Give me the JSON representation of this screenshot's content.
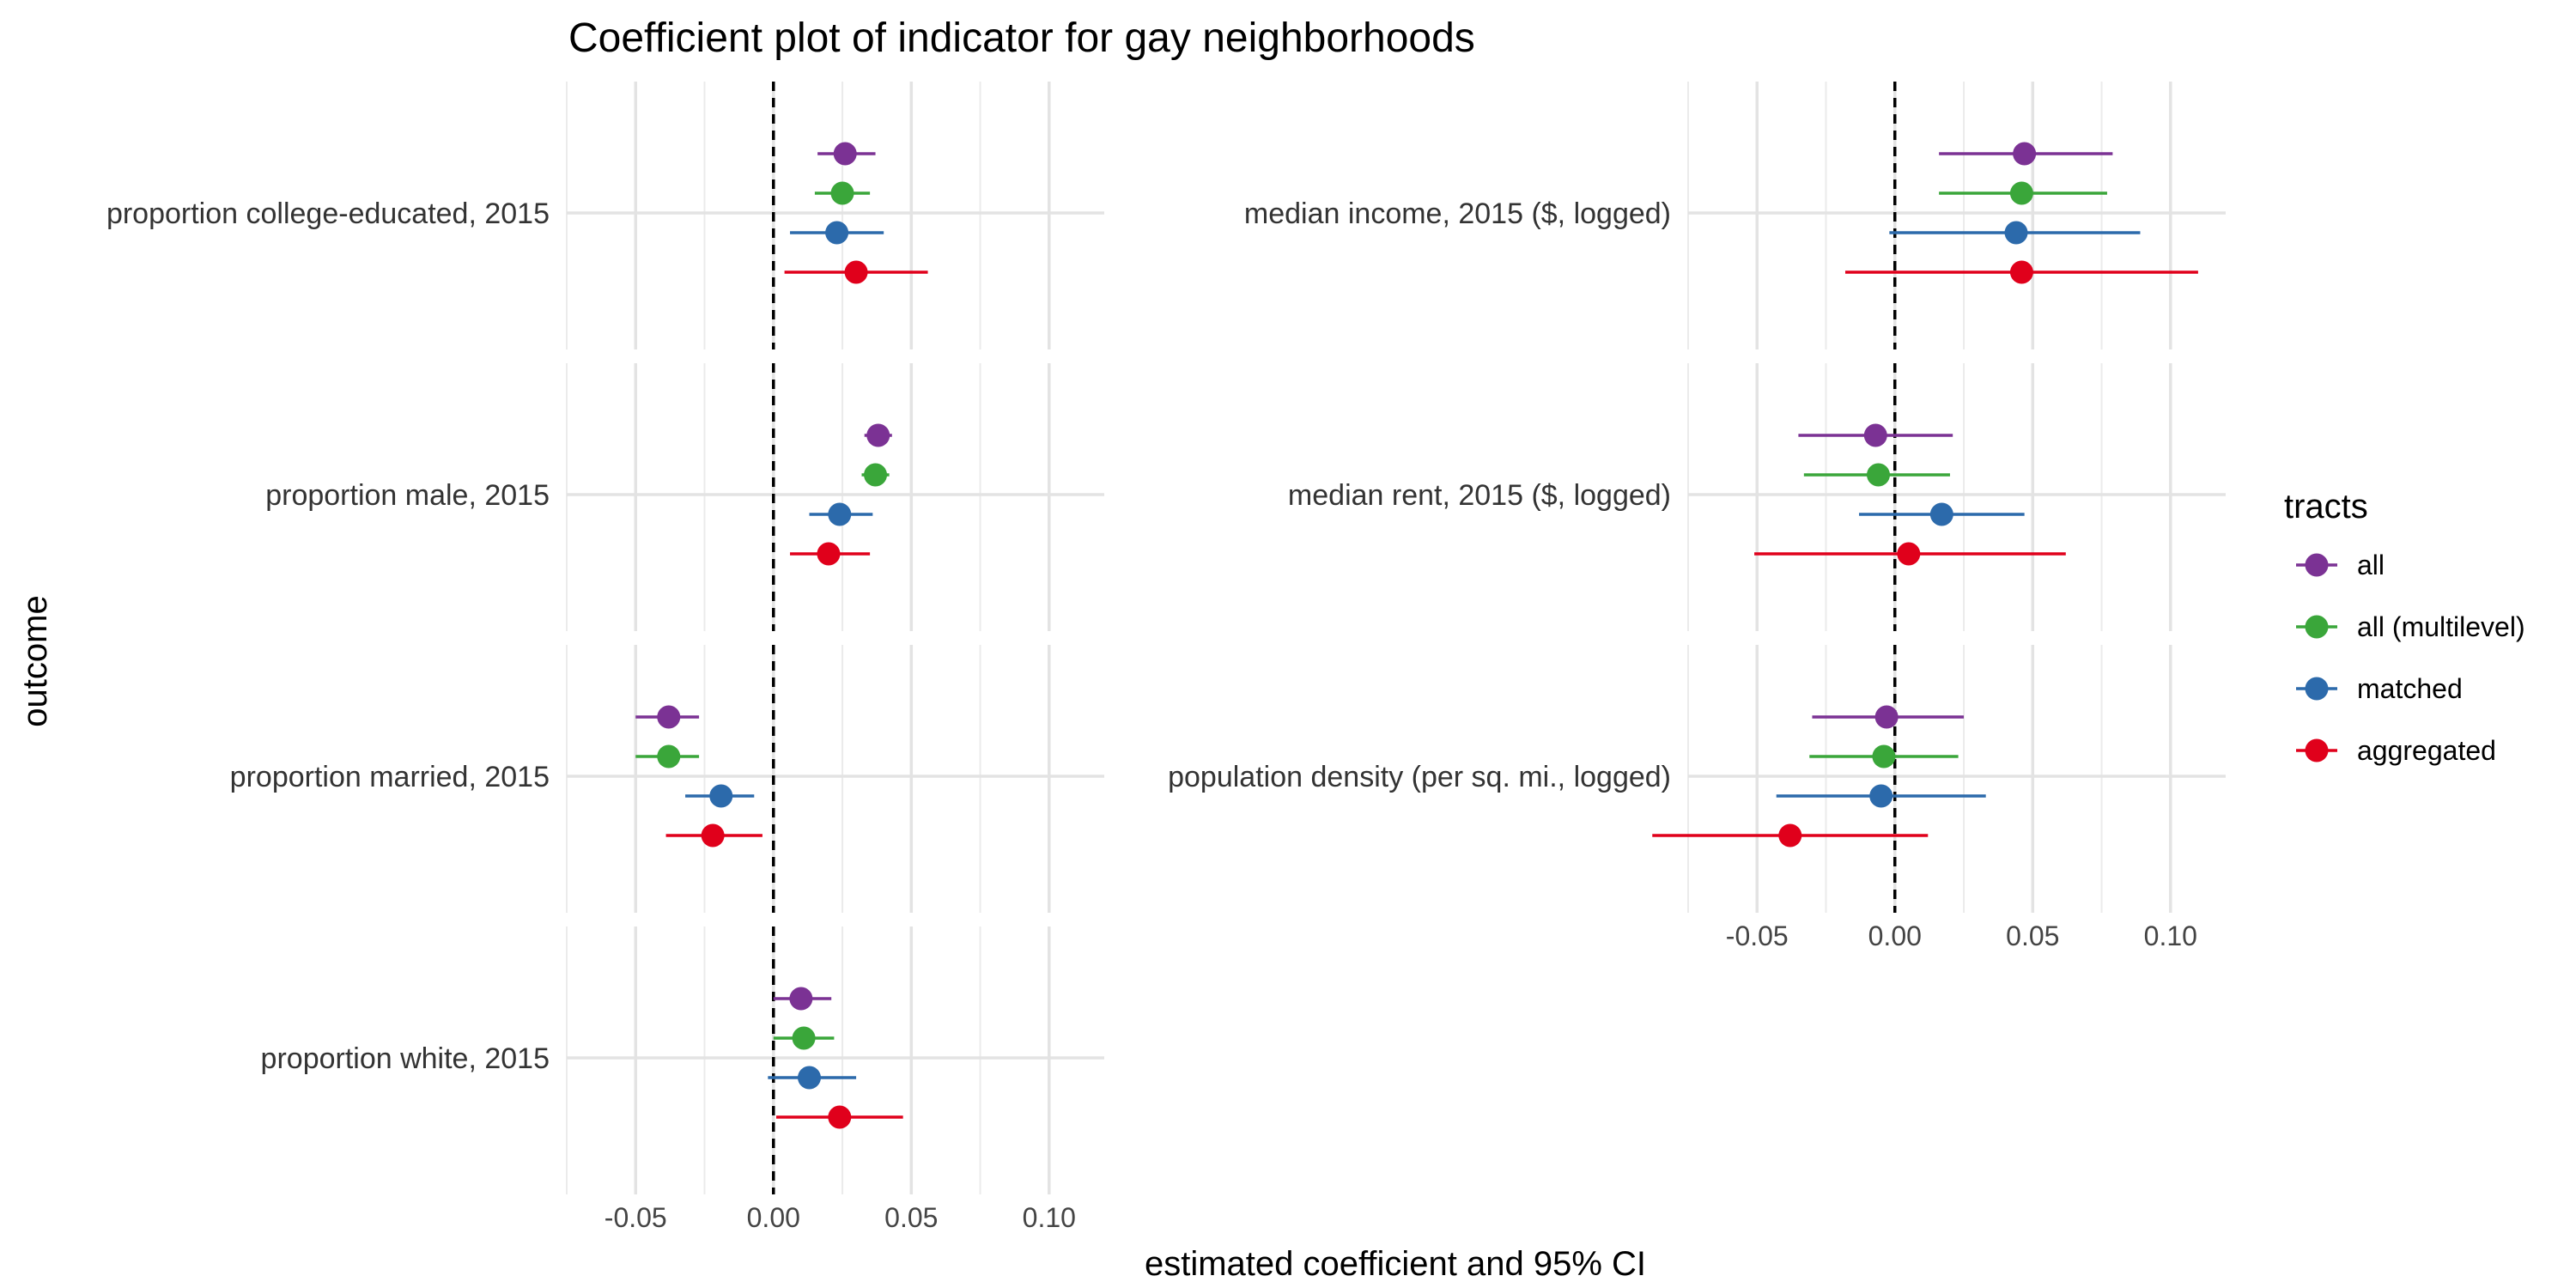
{
  "chart_data": {
    "type": "scatter",
    "title": "Coefficient plot of indicator for gay neighborhoods",
    "xlabel": "estimated coefficient and 95% CI",
    "ylabel": "outcome",
    "xlim": [
      -0.075,
      0.12
    ],
    "x_ticks": [
      -0.05,
      0.0,
      0.05,
      0.1
    ],
    "x_tick_labels": [
      "-0.05",
      "0.00",
      "0.05",
      "0.10"
    ],
    "reference_line": 0,
    "grid": true,
    "legend": {
      "title": "tracts",
      "placement": "right",
      "entries": [
        {
          "label": "all",
          "color": "#7b3294"
        },
        {
          "label": "all (multilevel)",
          "color": "#3aa63a"
        },
        {
          "label": "matched",
          "color": "#2c6aab"
        },
        {
          "label": "aggregated",
          "color": "#e0001b"
        }
      ]
    },
    "facets": [
      {
        "label": "proportion college-educated, 2015",
        "estimates": [
          {
            "series": "all",
            "estimate": 0.026,
            "low": 0.016,
            "high": 0.037
          },
          {
            "series": "all (multilevel)",
            "estimate": 0.025,
            "low": 0.015,
            "high": 0.035
          },
          {
            "series": "matched",
            "estimate": 0.023,
            "low": 0.006,
            "high": 0.04
          },
          {
            "series": "aggregated",
            "estimate": 0.03,
            "low": 0.004,
            "high": 0.056
          }
        ]
      },
      {
        "label": "proportion male, 2015",
        "estimates": [
          {
            "series": "all",
            "estimate": 0.038,
            "low": 0.033,
            "high": 0.043
          },
          {
            "series": "all (multilevel)",
            "estimate": 0.037,
            "low": 0.032,
            "high": 0.042
          },
          {
            "series": "matched",
            "estimate": 0.024,
            "low": 0.013,
            "high": 0.036
          },
          {
            "series": "aggregated",
            "estimate": 0.02,
            "low": 0.006,
            "high": 0.035
          }
        ]
      },
      {
        "label": "proportion married, 2015",
        "estimates": [
          {
            "series": "all",
            "estimate": -0.038,
            "low": -0.05,
            "high": -0.027
          },
          {
            "series": "all (multilevel)",
            "estimate": -0.038,
            "low": -0.05,
            "high": -0.027
          },
          {
            "series": "matched",
            "estimate": -0.019,
            "low": -0.032,
            "high": -0.007
          },
          {
            "series": "aggregated",
            "estimate": -0.022,
            "low": -0.039,
            "high": -0.004
          }
        ]
      },
      {
        "label": "proportion white, 2015",
        "estimates": [
          {
            "series": "all",
            "estimate": 0.01,
            "low": 0.0,
            "high": 0.021
          },
          {
            "series": "all (multilevel)",
            "estimate": 0.011,
            "low": 0.0,
            "high": 0.022
          },
          {
            "series": "matched",
            "estimate": 0.013,
            "low": -0.002,
            "high": 0.03
          },
          {
            "series": "aggregated",
            "estimate": 0.024,
            "low": 0.001,
            "high": 0.047
          }
        ]
      },
      {
        "label": "median income, 2015 ($, logged)",
        "estimates": [
          {
            "series": "all",
            "estimate": 0.047,
            "low": 0.016,
            "high": 0.079
          },
          {
            "series": "all (multilevel)",
            "estimate": 0.046,
            "low": 0.016,
            "high": 0.077
          },
          {
            "series": "matched",
            "estimate": 0.044,
            "low": -0.002,
            "high": 0.089
          },
          {
            "series": "aggregated",
            "estimate": 0.046,
            "low": -0.018,
            "high": 0.11
          }
        ]
      },
      {
        "label": "median rent, 2015 ($, logged)",
        "estimates": [
          {
            "series": "all",
            "estimate": -0.007,
            "low": -0.035,
            "high": 0.021
          },
          {
            "series": "all (multilevel)",
            "estimate": -0.006,
            "low": -0.033,
            "high": 0.02
          },
          {
            "series": "matched",
            "estimate": 0.017,
            "low": -0.013,
            "high": 0.047
          },
          {
            "series": "aggregated",
            "estimate": 0.005,
            "low": -0.051,
            "high": 0.062
          }
        ]
      },
      {
        "label": "population density (per sq. mi., logged)",
        "estimates": [
          {
            "series": "all",
            "estimate": -0.003,
            "low": -0.03,
            "high": 0.025
          },
          {
            "series": "all (multilevel)",
            "estimate": -0.004,
            "low": -0.031,
            "high": 0.023
          },
          {
            "series": "matched",
            "estimate": -0.005,
            "low": -0.043,
            "high": 0.033
          },
          {
            "series": "aggregated",
            "estimate": -0.038,
            "low": -0.088,
            "high": 0.012
          }
        ]
      }
    ]
  }
}
